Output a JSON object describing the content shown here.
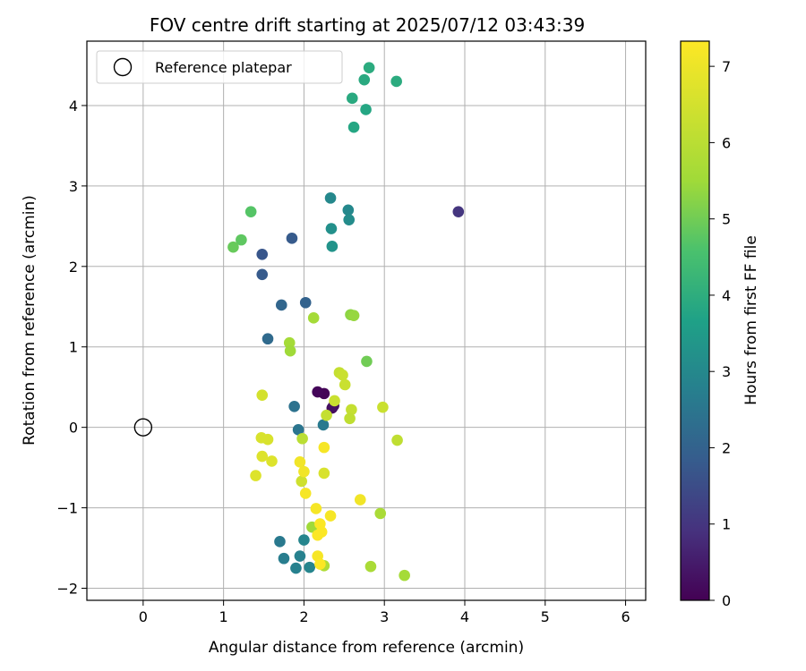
{
  "chart_data": {
    "type": "scatter",
    "title": "FOV centre drift starting at 2025/07/12 03:43:39",
    "xlabel": "Angular distance from reference (arcmin)",
    "ylabel": "Rotation from reference (arcmin)",
    "xlim": [
      -0.7,
      6.25
    ],
    "ylim": [
      -2.15,
      4.8
    ],
    "xticks": [
      0,
      1,
      2,
      3,
      4,
      5,
      6
    ],
    "yticks": [
      -2,
      -1,
      0,
      1,
      2,
      3,
      4
    ],
    "grid": true,
    "legend": {
      "placement": "upper-left",
      "entries": [
        {
          "label": "Reference platepar",
          "marker": "open-circle"
        }
      ]
    },
    "reference_point": {
      "x": 0,
      "y": 0
    },
    "colorbar": {
      "label": "Hours from first FF file",
      "colormap": "viridis",
      "min": 0,
      "max": 7.33,
      "ticks": [
        0,
        1,
        2,
        3,
        4,
        5,
        6,
        7
      ]
    },
    "points": [
      {
        "x": 2.25,
        "y": 0.42,
        "c": 0.05
      },
      {
        "x": 2.17,
        "y": 0.44,
        "c": 0.1
      },
      {
        "x": 2.35,
        "y": 0.24,
        "c": 0.2
      },
      {
        "x": 2.37,
        "y": 0.27,
        "c": 0.3
      },
      {
        "x": 3.92,
        "y": 2.68,
        "c": 1.0
      },
      {
        "x": 1.48,
        "y": 2.15,
        "c": 1.7
      },
      {
        "x": 1.48,
        "y": 1.9,
        "c": 1.8
      },
      {
        "x": 1.85,
        "y": 2.35,
        "c": 1.8
      },
      {
        "x": 2.02,
        "y": 1.55,
        "c": 2.0
      },
      {
        "x": 1.72,
        "y": 1.52,
        "c": 2.1
      },
      {
        "x": 1.55,
        "y": 1.1,
        "c": 2.2
      },
      {
        "x": 1.88,
        "y": 0.26,
        "c": 2.4
      },
      {
        "x": 1.93,
        "y": -0.03,
        "c": 2.5
      },
      {
        "x": 2.24,
        "y": 0.03,
        "c": 2.6
      },
      {
        "x": 1.7,
        "y": -1.42,
        "c": 2.6
      },
      {
        "x": 1.75,
        "y": -1.63,
        "c": 2.7
      },
      {
        "x": 1.9,
        "y": -1.75,
        "c": 2.8
      },
      {
        "x": 1.95,
        "y": -1.6,
        "c": 2.8
      },
      {
        "x": 2.0,
        "y": -1.4,
        "c": 2.9
      },
      {
        "x": 2.07,
        "y": -1.74,
        "c": 2.9
      },
      {
        "x": 2.33,
        "y": 2.85,
        "c": 3.0
      },
      {
        "x": 2.55,
        "y": 2.7,
        "c": 3.0
      },
      {
        "x": 2.56,
        "y": 2.58,
        "c": 3.1
      },
      {
        "x": 2.34,
        "y": 2.47,
        "c": 3.2
      },
      {
        "x": 2.35,
        "y": 2.25,
        "c": 3.3
      },
      {
        "x": 2.62,
        "y": 3.73,
        "c": 3.8
      },
      {
        "x": 2.77,
        "y": 3.95,
        "c": 3.8
      },
      {
        "x": 2.6,
        "y": 4.09,
        "c": 3.9
      },
      {
        "x": 2.75,
        "y": 4.32,
        "c": 3.9
      },
      {
        "x": 2.81,
        "y": 4.47,
        "c": 3.95
      },
      {
        "x": 3.15,
        "y": 4.3,
        "c": 3.95
      },
      {
        "x": 1.34,
        "y": 2.68,
        "c": 4.7
      },
      {
        "x": 1.22,
        "y": 2.33,
        "c": 4.8
      },
      {
        "x": 1.12,
        "y": 2.24,
        "c": 4.9
      },
      {
        "x": 2.78,
        "y": 0.82,
        "c": 5.0
      },
      {
        "x": 2.58,
        "y": 1.4,
        "c": 5.3
      },
      {
        "x": 2.62,
        "y": 1.39,
        "c": 5.4
      },
      {
        "x": 2.12,
        "y": 1.36,
        "c": 5.6
      },
      {
        "x": 1.82,
        "y": 1.05,
        "c": 5.6
      },
      {
        "x": 1.83,
        "y": 0.95,
        "c": 5.5
      },
      {
        "x": 2.1,
        "y": -1.24,
        "c": 5.5
      },
      {
        "x": 2.95,
        "y": -1.07,
        "c": 5.7
      },
      {
        "x": 2.83,
        "y": -1.73,
        "c": 5.7
      },
      {
        "x": 3.25,
        "y": -1.84,
        "c": 5.6
      },
      {
        "x": 2.25,
        "y": -1.72,
        "c": 5.8
      },
      {
        "x": 2.44,
        "y": 0.68,
        "c": 6.2
      },
      {
        "x": 2.48,
        "y": 0.65,
        "c": 6.3
      },
      {
        "x": 2.51,
        "y": 0.53,
        "c": 6.3
      },
      {
        "x": 2.38,
        "y": 0.33,
        "c": 6.3
      },
      {
        "x": 2.28,
        "y": 0.15,
        "c": 6.2
      },
      {
        "x": 2.59,
        "y": 0.22,
        "c": 6.2
      },
      {
        "x": 2.57,
        "y": 0.11,
        "c": 6.1
      },
      {
        "x": 2.98,
        "y": 0.25,
        "c": 6.3
      },
      {
        "x": 3.16,
        "y": -0.16,
        "c": 6.1
      },
      {
        "x": 1.98,
        "y": -0.14,
        "c": 6.0
      },
      {
        "x": 1.48,
        "y": 0.4,
        "c": 6.5
      },
      {
        "x": 1.47,
        "y": -0.13,
        "c": 6.6
      },
      {
        "x": 1.55,
        "y": -0.15,
        "c": 6.6
      },
      {
        "x": 1.48,
        "y": -0.36,
        "c": 6.7
      },
      {
        "x": 1.6,
        "y": -0.42,
        "c": 6.7
      },
      {
        "x": 1.4,
        "y": -0.6,
        "c": 6.7
      },
      {
        "x": 1.97,
        "y": -0.67,
        "c": 6.4
      },
      {
        "x": 2.25,
        "y": -0.57,
        "c": 6.6
      },
      {
        "x": 1.95,
        "y": -0.43,
        "c": 7.1
      },
      {
        "x": 2.0,
        "y": -0.55,
        "c": 7.1
      },
      {
        "x": 2.02,
        "y": -0.82,
        "c": 7.2
      },
      {
        "x": 2.25,
        "y": -0.25,
        "c": 7.2
      },
      {
        "x": 2.15,
        "y": -1.01,
        "c": 7.2
      },
      {
        "x": 2.33,
        "y": -1.1,
        "c": 7.2
      },
      {
        "x": 2.7,
        "y": -0.9,
        "c": 7.1
      },
      {
        "x": 2.2,
        "y": -1.2,
        "c": 7.3
      },
      {
        "x": 2.17,
        "y": -1.34,
        "c": 7.3
      },
      {
        "x": 2.22,
        "y": -1.3,
        "c": 7.3
      },
      {
        "x": 2.17,
        "y": -1.6,
        "c": 7.2
      },
      {
        "x": 2.2,
        "y": -1.7,
        "c": 7.3
      }
    ]
  }
}
